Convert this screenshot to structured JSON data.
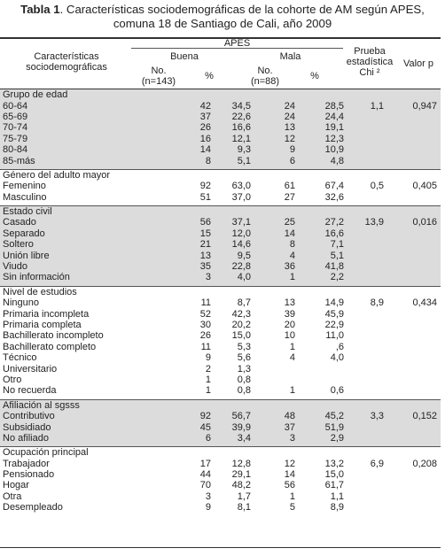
{
  "title": {
    "lead": "Tabla 1",
    "text_line1": ". Características sociodemográficas de la cohorte de AM según APES,",
    "text_line2": "comuna 18 de Santiago de Cali, año 2009"
  },
  "header": {
    "characteristics_line1": "Características",
    "characteristics_line2": "sociodemográficas",
    "apes": "APES",
    "buena": "Buena",
    "mala": "Mala",
    "buena_no_line1": "No.",
    "buena_no_line2": "(n=143)",
    "buena_pct": "%",
    "mala_no_line1": "No.",
    "mala_no_line2": "(n=88)",
    "mala_pct": "%",
    "chi_line1": "Prueba",
    "chi_line2": "estadística",
    "chi_line3": "Chi ²",
    "pvalue": "Valor p"
  },
  "groups": [
    {
      "name": "Grupo de edad",
      "gray": true,
      "chi": "1,1",
      "p": "0,947",
      "rows": [
        {
          "label": "60-64",
          "b_no": "42",
          "b_pct": "34,5",
          "m_no": "24",
          "m_pct": "28,5"
        },
        {
          "label": "65-69",
          "b_no": "37",
          "b_pct": "22,6",
          "m_no": "24",
          "m_pct": "24,4"
        },
        {
          "label": "70-74",
          "b_no": "26",
          "b_pct": "16,6",
          "m_no": "13",
          "m_pct": "19,1"
        },
        {
          "label": "75-79",
          "b_no": "16",
          "b_pct": "12,1",
          "m_no": "12",
          "m_pct": "12,3"
        },
        {
          "label": "80-84",
          "b_no": "14",
          "b_pct": "9,3",
          "m_no": "9",
          "m_pct": "10,9"
        },
        {
          "label": "85-más",
          "b_no": "8",
          "b_pct": "5,1",
          "m_no": "6",
          "m_pct": "4,8"
        }
      ]
    },
    {
      "name": "Género del adulto mayor",
      "gray": false,
      "chi": "0,5",
      "p": "0,405",
      "rows": [
        {
          "label": "Femenino",
          "b_no": "92",
          "b_pct": "63,0",
          "m_no": "61",
          "m_pct": "67,4"
        },
        {
          "label": "Masculino",
          "b_no": "51",
          "b_pct": "37,0",
          "m_no": "27",
          "m_pct": "32,6"
        }
      ]
    },
    {
      "name": "Estado civil",
      "gray": true,
      "chi": "13,9",
      "p": "0,016",
      "rows": [
        {
          "label": "Casado",
          "b_no": "56",
          "b_pct": "37,1",
          "m_no": "25",
          "m_pct": "27,2"
        },
        {
          "label": "Separado",
          "b_no": "15",
          "b_pct": "12,0",
          "m_no": "14",
          "m_pct": "16,6"
        },
        {
          "label": "Soltero",
          "b_no": "21",
          "b_pct": "14,6",
          "m_no": "8",
          "m_pct": "7,1"
        },
        {
          "label": "Unión libre",
          "b_no": "13",
          "b_pct": "9,5",
          "m_no": "4",
          "m_pct": "5,1"
        },
        {
          "label": "Viudo",
          "b_no": "35",
          "b_pct": "22,8",
          "m_no": "36",
          "m_pct": "41,8"
        },
        {
          "label": "Sin información",
          "b_no": "3",
          "b_pct": "4,0",
          "m_no": "1",
          "m_pct": "2,2"
        }
      ]
    },
    {
      "name": "Nivel de estudios",
      "gray": false,
      "chi": "8,9",
      "p": "0,434",
      "rows": [
        {
          "label": "Ninguno",
          "b_no": "11",
          "b_pct": "8,7",
          "m_no": "13",
          "m_pct": "14,9"
        },
        {
          "label": "Primaria incompleta",
          "b_no": "52",
          "b_pct": "42,3",
          "m_no": "39",
          "m_pct": "45,9"
        },
        {
          "label": "Primaria completa",
          "b_no": "30",
          "b_pct": "20,2",
          "m_no": "20",
          "m_pct": "22,9"
        },
        {
          "label": "Bachillerato incompleto",
          "b_no": "26",
          "b_pct": "15,0",
          "m_no": "10",
          "m_pct": "11,0"
        },
        {
          "label": "Bachillerato completo",
          "b_no": "11",
          "b_pct": "5,3",
          "m_no": "1",
          "m_pct": ",6"
        },
        {
          "label": "Técnico",
          "b_no": "9",
          "b_pct": "5,6",
          "m_no": "4",
          "m_pct": "4,0"
        },
        {
          "label": "Universitario",
          "b_no": "2",
          "b_pct": "1,3",
          "m_no": "",
          "m_pct": ""
        },
        {
          "label": "Otro",
          "b_no": "1",
          "b_pct": "0,8",
          "m_no": "",
          "m_pct": ""
        },
        {
          "label": "No recuerda",
          "b_no": "1",
          "b_pct": "0,8",
          "m_no": "1",
          "m_pct": "0,6"
        }
      ]
    },
    {
      "name": "Afiliación al sgsss",
      "gray": true,
      "chi": "3,3",
      "p": "0,152",
      "rows": [
        {
          "label": "Contributivo",
          "b_no": "92",
          "b_pct": "56,7",
          "m_no": "48",
          "m_pct": "45,2"
        },
        {
          "label": "Subsidiado",
          "b_no": "45",
          "b_pct": "39,9",
          "m_no": "37",
          "m_pct": "51,9"
        },
        {
          "label": "No afiliado",
          "b_no": "6",
          "b_pct": "3,4",
          "m_no": "3",
          "m_pct": "2,9"
        }
      ]
    },
    {
      "name": "Ocupación principal",
      "gray": false,
      "chi": "6,9",
      "p": "0,208",
      "rows": [
        {
          "label": "Trabajador",
          "b_no": "17",
          "b_pct": "12,8",
          "m_no": "12",
          "m_pct": "13,2"
        },
        {
          "label": "Pensionado",
          "b_no": "44",
          "b_pct": "29,1",
          "m_no": "14",
          "m_pct": "15,0"
        },
        {
          "label": "Hogar",
          "b_no": "70",
          "b_pct": "48,2",
          "m_no": "56",
          "m_pct": "61,7"
        },
        {
          "label": "Otra",
          "b_no": "3",
          "b_pct": "1,7",
          "m_no": "1",
          "m_pct": "1,1"
        },
        {
          "label": "Desempleado",
          "b_no": "9",
          "b_pct": "8,1",
          "m_no": "5",
          "m_pct": "8,9"
        }
      ]
    }
  ]
}
